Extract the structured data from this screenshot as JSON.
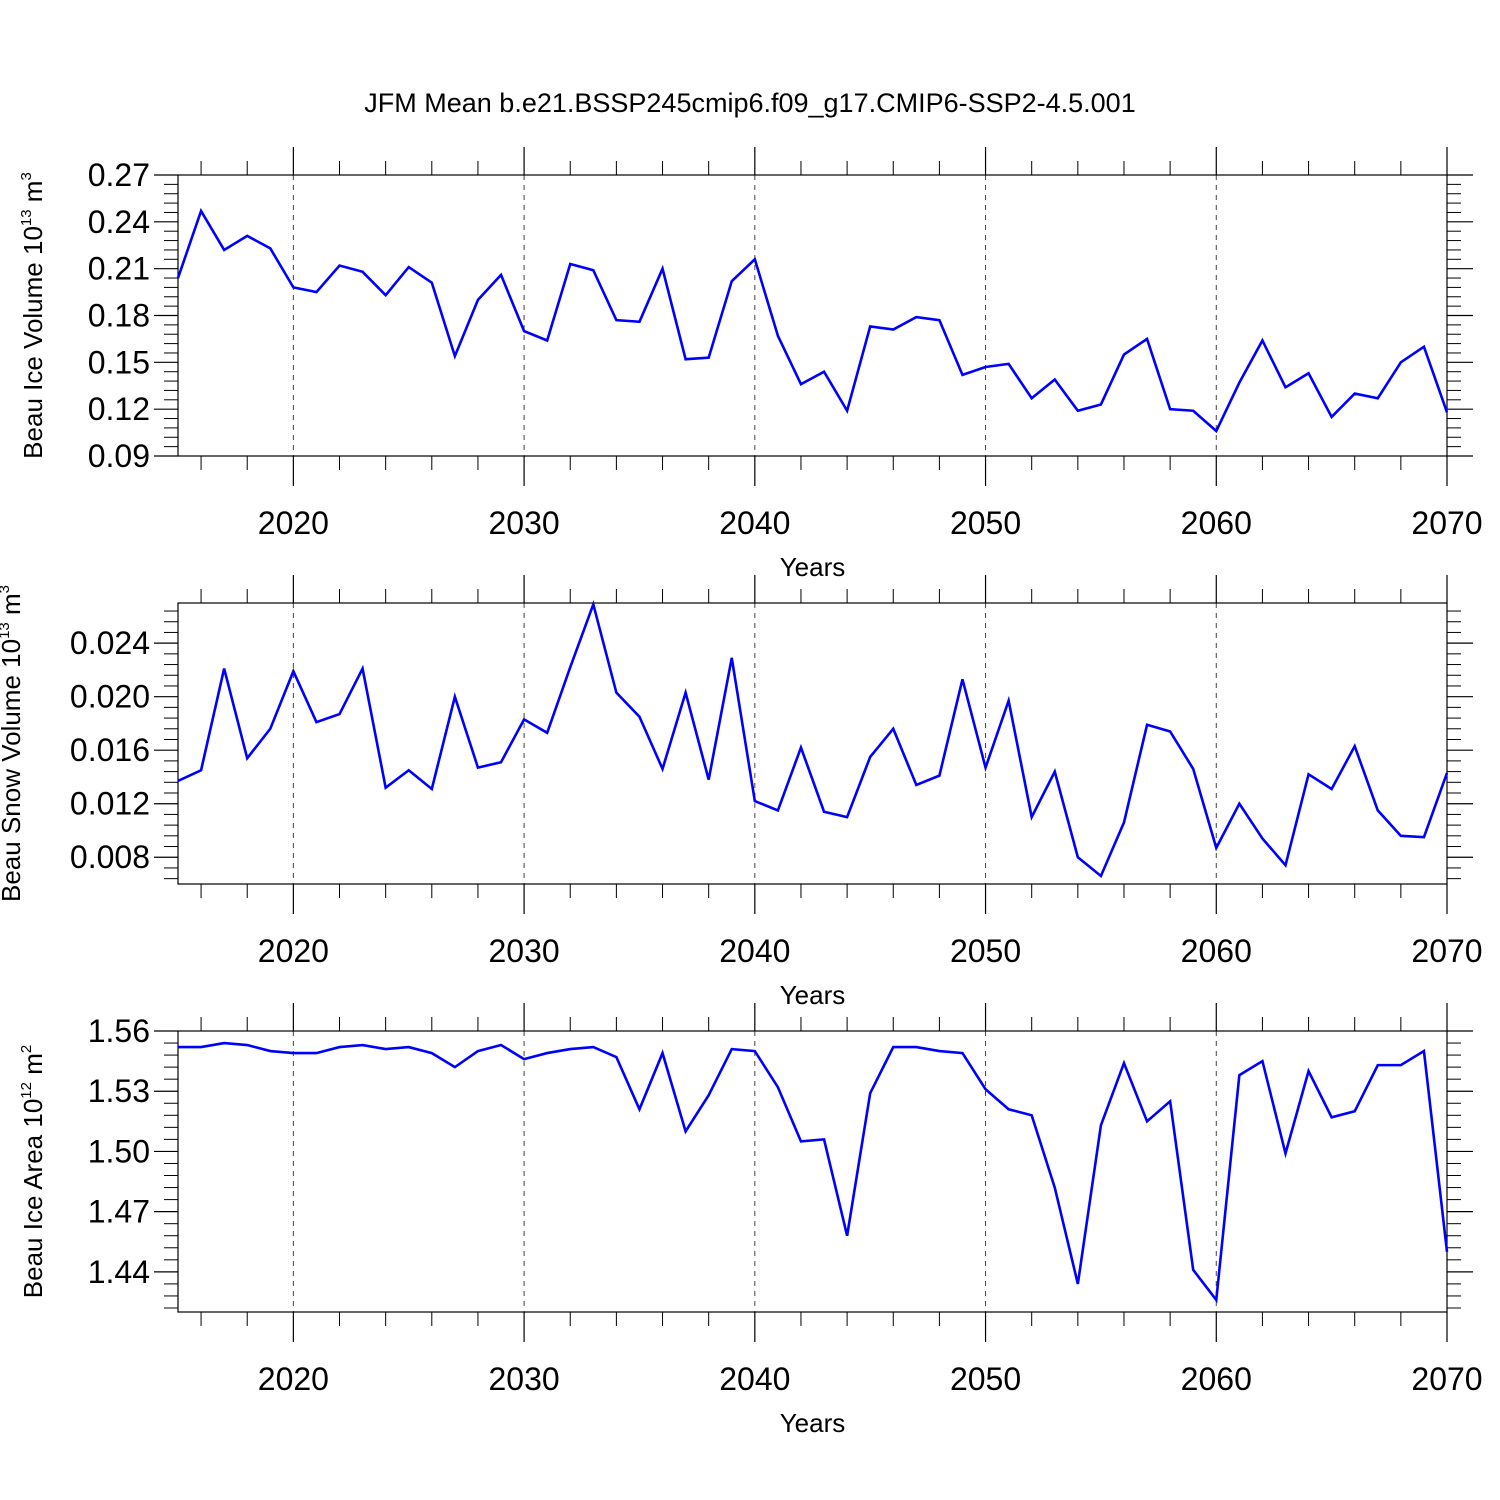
{
  "title": "JFM Mean b.e21.BSSP245cmip6.f09_g17.CMIP6-SSP2-4.5.001",
  "colors": {
    "line": "#0000ff",
    "axis": "#000000",
    "grid": "#444444"
  },
  "chart_data": [
    {
      "type": "line",
      "ylabel": {
        "main": "Beau Ice Volume 10",
        "sup": "13",
        "unit": " m",
        "unit_sup": "3"
      },
      "xlabel": "Years",
      "xlim": [
        2015,
        2070
      ],
      "ylim": [
        0.09,
        0.27
      ],
      "yticks": [
        0.09,
        0.12,
        0.15,
        0.18,
        0.21,
        0.24,
        0.27
      ],
      "ytick_labels": [
        "0.09",
        "0.12",
        "0.15",
        "0.18",
        "0.21",
        "0.24",
        "0.27"
      ],
      "xticks": [
        2020,
        2030,
        2040,
        2050,
        2060,
        2070
      ],
      "xtick_labels": [
        "2020",
        "2030",
        "2040",
        "2050",
        "2060",
        "2070"
      ],
      "x_start": 2015,
      "values": [
        0.204,
        0.247,
        0.222,
        0.231,
        0.223,
        0.198,
        0.195,
        0.212,
        0.208,
        0.193,
        0.211,
        0.201,
        0.154,
        0.19,
        0.206,
        0.17,
        0.164,
        0.213,
        0.209,
        0.177,
        0.176,
        0.21,
        0.152,
        0.153,
        0.202,
        0.216,
        0.167,
        0.136,
        0.144,
        0.119,
        0.173,
        0.171,
        0.179,
        0.177,
        0.142,
        0.147,
        0.149,
        0.127,
        0.139,
        0.119,
        0.123,
        0.155,
        0.165,
        0.12,
        0.119,
        0.106,
        0.137,
        0.164,
        0.134,
        0.143,
        0.115,
        0.13,
        0.127,
        0.15,
        0.16,
        0.118
      ]
    },
    {
      "type": "line",
      "ylabel": {
        "main": "Beau Snow Volume 10",
        "sup": "13",
        "unit": " m",
        "unit_sup": "3"
      },
      "xlabel": "Years",
      "xlim": [
        2015,
        2070
      ],
      "ylim": [
        0.006,
        0.027
      ],
      "yticks": [
        0.008,
        0.012,
        0.016,
        0.02,
        0.024
      ],
      "ytick_labels": [
        "0.008",
        "0.012",
        "0.016",
        "0.020",
        "0.024"
      ],
      "xticks": [
        2020,
        2030,
        2040,
        2050,
        2060,
        2070
      ],
      "xtick_labels": [
        "2020",
        "2030",
        "2040",
        "2050",
        "2060",
        "2070"
      ],
      "x_start": 2015,
      "values": [
        0.0137,
        0.0145,
        0.0221,
        0.0154,
        0.0176,
        0.0219,
        0.0181,
        0.0187,
        0.0221,
        0.0132,
        0.0145,
        0.0131,
        0.02,
        0.0147,
        0.0151,
        0.0183,
        0.0173,
        0.0222,
        0.0269,
        0.0203,
        0.0185,
        0.0146,
        0.0203,
        0.0138,
        0.0229,
        0.0122,
        0.0115,
        0.0162,
        0.0114,
        0.011,
        0.0155,
        0.0176,
        0.0134,
        0.0141,
        0.0213,
        0.0147,
        0.0197,
        0.011,
        0.0144,
        0.008,
        0.0066,
        0.0106,
        0.0179,
        0.0174,
        0.0146,
        0.0087,
        0.012,
        0.0094,
        0.0074,
        0.0142,
        0.0131,
        0.0163,
        0.0115,
        0.0096,
        0.0095,
        0.0143
      ]
    },
    {
      "type": "line",
      "ylabel": {
        "main": "Beau Ice Area 10",
        "sup": "12",
        "unit": " m",
        "unit_sup": "2"
      },
      "xlabel": "Years",
      "xlim": [
        2015,
        2070
      ],
      "ylim": [
        1.42,
        1.56
      ],
      "yticks": [
        1.44,
        1.47,
        1.5,
        1.53,
        1.56
      ],
      "ytick_labels": [
        "1.44",
        "1.47",
        "1.50",
        "1.53",
        "1.56"
      ],
      "xticks": [
        2020,
        2030,
        2040,
        2050,
        2060,
        2070
      ],
      "xtick_labels": [
        "2020",
        "2030",
        "2040",
        "2050",
        "2060",
        "2070"
      ],
      "x_start": 2015,
      "values": [
        1.552,
        1.552,
        1.554,
        1.553,
        1.55,
        1.549,
        1.549,
        1.552,
        1.553,
        1.551,
        1.552,
        1.549,
        1.542,
        1.55,
        1.553,
        1.546,
        1.549,
        1.551,
        1.552,
        1.547,
        1.521,
        1.549,
        1.51,
        1.528,
        1.551,
        1.55,
        1.532,
        1.505,
        1.506,
        1.458,
        1.529,
        1.552,
        1.552,
        1.55,
        1.549,
        1.531,
        1.521,
        1.518,
        1.482,
        1.434,
        1.513,
        1.544,
        1.515,
        1.525,
        1.441,
        1.426,
        1.538,
        1.545,
        1.499,
        1.54,
        1.517,
        1.52,
        1.543,
        1.543,
        1.55,
        1.45
      ]
    }
  ]
}
